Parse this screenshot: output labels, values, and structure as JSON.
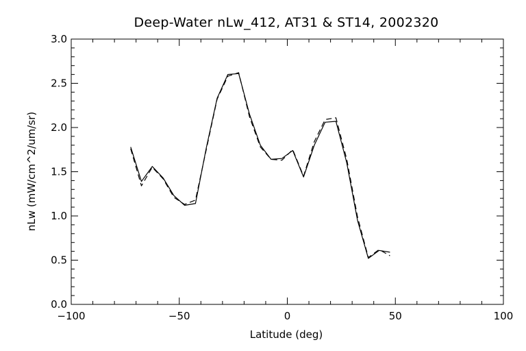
{
  "chart_data": {
    "type": "line",
    "title": "Deep-Water nLw_412, AT31 & ST14, 2002320",
    "xlabel": "Latitude (deg)",
    "ylabel": "nLw (mW/cm^2/um/sr)",
    "xlim": [
      -100,
      100
    ],
    "ylim": [
      0.0,
      3.0
    ],
    "xticks": [
      -100,
      -50,
      0,
      50,
      100
    ],
    "xtick_labels": [
      "−100",
      "−50",
      "0",
      "50",
      "100"
    ],
    "yticks": [
      0.0,
      0.5,
      1.0,
      1.5,
      2.0,
      2.5,
      3.0
    ],
    "ytick_labels": [
      "0.0",
      "0.5",
      "1.0",
      "1.5",
      "2.0",
      "2.5",
      "3.0"
    ],
    "grid": false,
    "series": [
      {
        "style": "solid",
        "color": "#000000",
        "x": [
          -72.5,
          -67.5,
          -62.5,
          -57.5,
          -52.5,
          -47.5,
          -42.5,
          -37.5,
          -32.5,
          -27.5,
          -22.5,
          -17.5,
          -12.5,
          -7.5,
          -2.5,
          2.5,
          7.5,
          12.5,
          17.5,
          22.5,
          27.5,
          32.5,
          37.5,
          42.5,
          47.5
        ],
        "y": [
          1.78,
          1.39,
          1.56,
          1.43,
          1.23,
          1.12,
          1.14,
          1.77,
          2.33,
          2.6,
          2.61,
          2.15,
          1.8,
          1.64,
          1.65,
          1.74,
          1.44,
          1.8,
          2.06,
          2.07,
          1.6,
          0.95,
          0.52,
          0.61,
          0.59
        ]
      },
      {
        "style": "dashed",
        "color": "#000000",
        "x": [
          -72.5,
          -67.5,
          -62.5,
          -57.5,
          -52.5,
          -47.5,
          -42.5,
          -37.5,
          -32.5,
          -27.5,
          -22.5,
          -17.5,
          -12.5,
          -7.5,
          -2.5,
          2.5,
          7.5,
          12.5,
          17.5,
          22.5,
          27.5,
          32.5,
          37.5,
          42.5,
          47.5
        ],
        "y": [
          1.76,
          1.34,
          1.55,
          1.42,
          1.21,
          1.13,
          1.18,
          1.75,
          2.32,
          2.58,
          2.62,
          2.12,
          1.78,
          1.64,
          1.63,
          1.75,
          1.45,
          1.84,
          2.09,
          2.11,
          1.64,
          0.99,
          0.53,
          0.62,
          0.55
        ]
      }
    ]
  }
}
